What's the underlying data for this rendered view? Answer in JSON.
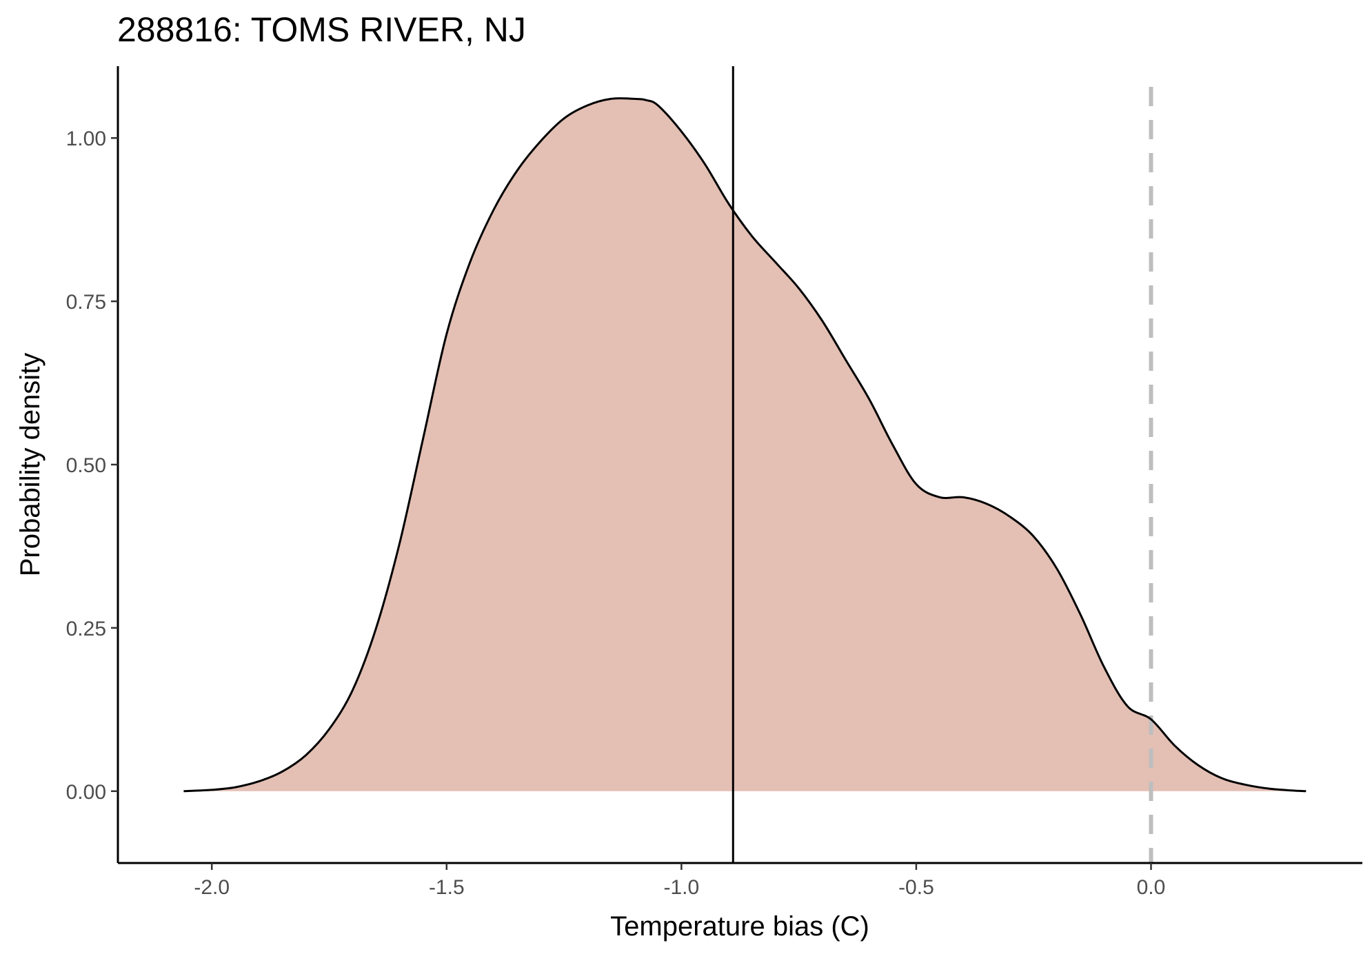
{
  "chart_data": {
    "type": "area",
    "title": "288816: TOMS RIVER, NJ",
    "xlabel": "Temperature bias (C)",
    "ylabel": "Probability density",
    "xlim": [
      -2.2,
      0.45
    ],
    "ylim": [
      -0.11,
      1.11
    ],
    "x_ticks": [
      -2.0,
      -1.5,
      -1.0,
      -0.5,
      0.0
    ],
    "x_tick_labels": [
      "-2.0",
      "-1.5",
      "-1.0",
      "-0.5",
      "0.0"
    ],
    "y_ticks": [
      0.0,
      0.25,
      0.5,
      0.75,
      1.0
    ],
    "y_tick_labels": [
      "0.00",
      "0.25",
      "0.50",
      "0.75",
      "1.00"
    ],
    "grid": false,
    "fill_color": "#e3bfb4",
    "line_color": "#000000",
    "reference_lines": [
      {
        "type": "solid-vertical",
        "x": -0.89,
        "color": "#000000"
      },
      {
        "type": "dashed-vertical",
        "x": 0.0,
        "color": "#bebebe"
      }
    ],
    "series": [
      {
        "x": [
          -2.06,
          -2.0,
          -1.95,
          -1.9,
          -1.85,
          -1.8,
          -1.75,
          -1.7,
          -1.65,
          -1.6,
          -1.55,
          -1.5,
          -1.45,
          -1.4,
          -1.35,
          -1.3,
          -1.25,
          -1.2,
          -1.15,
          -1.1,
          -1.075,
          -1.05,
          -1.0,
          -0.95,
          -0.9,
          -0.85,
          -0.8,
          -0.75,
          -0.7,
          -0.65,
          -0.6,
          -0.55,
          -0.5,
          -0.45,
          -0.4,
          -0.35,
          -0.3,
          -0.25,
          -0.2,
          -0.15,
          -0.1,
          -0.05,
          0.0,
          0.05,
          0.1,
          0.15,
          0.2,
          0.25,
          0.3,
          0.33
        ],
        "y": [
          0.0,
          0.002,
          0.006,
          0.015,
          0.03,
          0.055,
          0.095,
          0.155,
          0.25,
          0.38,
          0.54,
          0.7,
          0.81,
          0.89,
          0.95,
          0.995,
          1.03,
          1.05,
          1.06,
          1.06,
          1.058,
          1.05,
          1.01,
          0.96,
          0.9,
          0.85,
          0.81,
          0.77,
          0.72,
          0.66,
          0.6,
          0.53,
          0.47,
          0.45,
          0.45,
          0.44,
          0.42,
          0.39,
          0.34,
          0.27,
          0.19,
          0.13,
          0.11,
          0.07,
          0.04,
          0.02,
          0.01,
          0.004,
          0.001,
          0.0
        ]
      }
    ]
  }
}
